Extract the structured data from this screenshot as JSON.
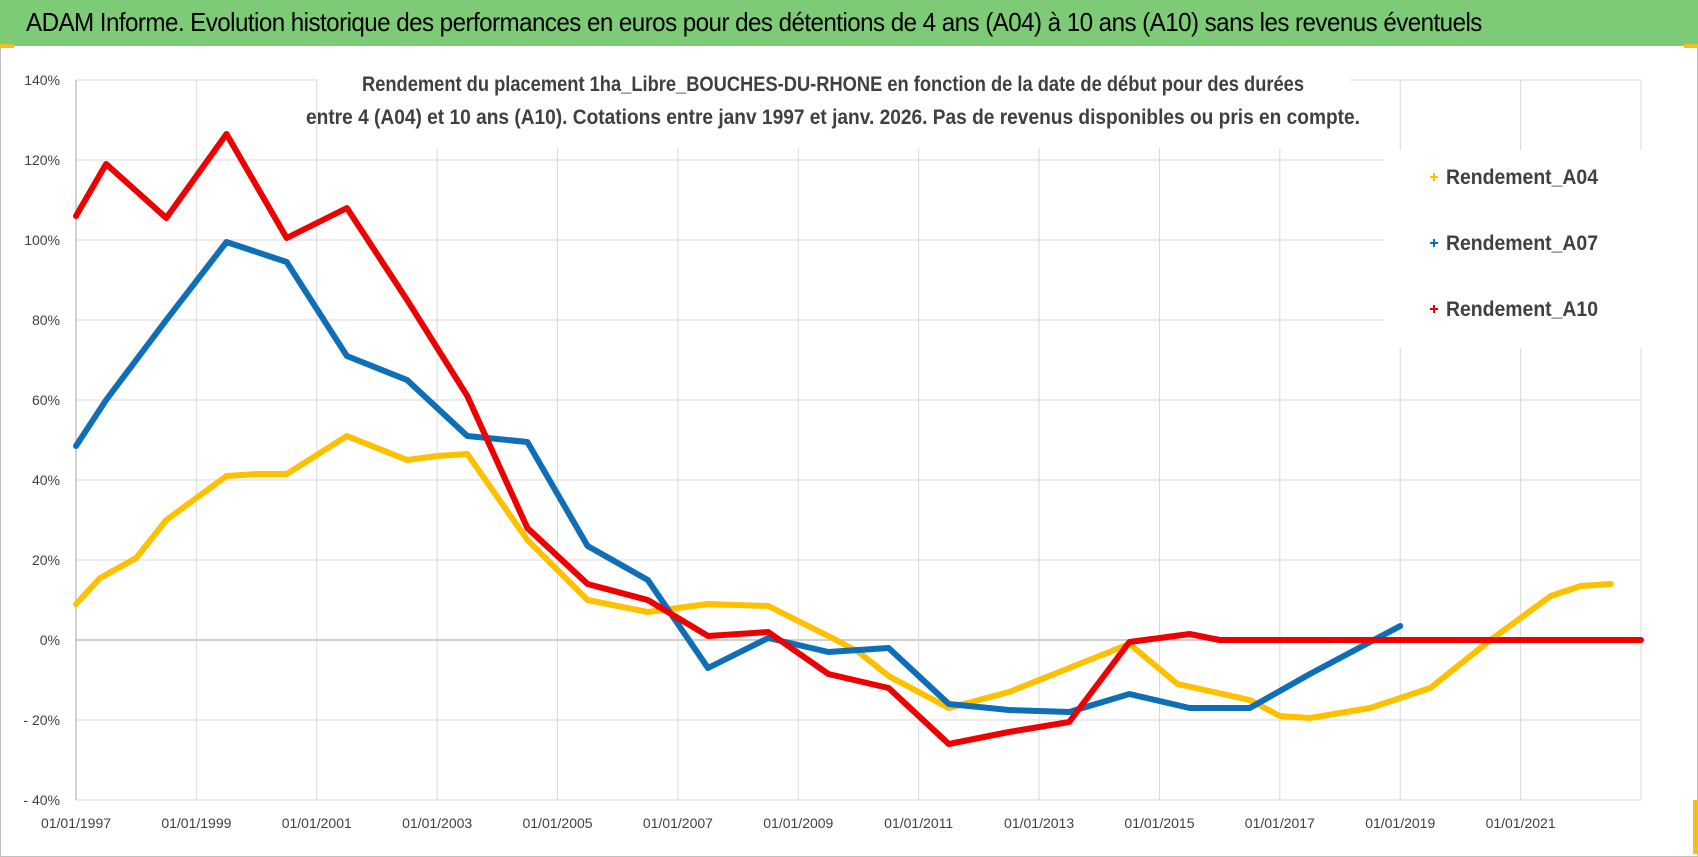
{
  "banner": {
    "title": "ADAM Informe. Evolution historique des performances en euros pour des détentions de 4 ans (A04) à 10 ans (A10) sans les revenus éventuels"
  },
  "colors": {
    "banner": "#7dcb76",
    "grid": "#d9d9d9",
    "zero": "#bfbfbf"
  },
  "chart_data": {
    "type": "line",
    "title_lines": [
      "Rendement du placement 1ha_Libre_BOUCHES-DU-RHONE en fonction de la date de début pour des durées",
      "entre 4 (A04) et 10 ans (A10).  Cotations entre janv 1997 et janv. 2026. Pas de revenus disponibles ou pris en compte."
    ],
    "x_range": [
      1997,
      2023
    ],
    "x_ticks": [
      1997,
      1999,
      2001,
      2003,
      2005,
      2007,
      2009,
      2011,
      2013,
      2015,
      2017,
      2019,
      2021
    ],
    "x_tick_labels": [
      "01/01/1997",
      "01/01/1999",
      "01/01/2001",
      "01/01/2003",
      "01/01/2005",
      "01/01/2007",
      "01/01/2009",
      "01/01/2011",
      "01/01/2013",
      "01/01/2015",
      "01/01/2017",
      "01/01/2019",
      "01/01/2021"
    ],
    "ylim": [
      -40,
      140
    ],
    "y_ticks": [
      -40,
      -20,
      0,
      20,
      40,
      60,
      80,
      100,
      120,
      140
    ],
    "y_tick_labels": [
      "- 40%",
      "- 20%",
      "0%",
      "20%",
      "40%",
      "60%",
      "80%",
      "100%",
      "120%",
      "140%"
    ],
    "series": [
      {
        "name": "Rendement_A04",
        "color": "#ffc000",
        "points": [
          [
            1997,
            9
          ],
          [
            1997.4,
            15.5
          ],
          [
            1998,
            20.5
          ],
          [
            1998.5,
            30
          ],
          [
            1999.5,
            41
          ],
          [
            2000,
            41.5
          ],
          [
            2000.5,
            41.5
          ],
          [
            2001.5,
            51
          ],
          [
            2002.5,
            45
          ],
          [
            2003,
            46
          ],
          [
            2003.5,
            46.5
          ],
          [
            2004.5,
            25
          ],
          [
            2005.5,
            10
          ],
          [
            2006.5,
            7
          ],
          [
            2007.5,
            9
          ],
          [
            2008.5,
            8.5
          ],
          [
            2009.5,
            1
          ],
          [
            2010,
            -3
          ],
          [
            2010.5,
            -9
          ],
          [
            2011.5,
            -17
          ],
          [
            2012.5,
            -13
          ],
          [
            2013.5,
            -7
          ],
          [
            2014.5,
            -1
          ],
          [
            2015.3,
            -11
          ],
          [
            2016.5,
            -15
          ],
          [
            2017,
            -19
          ],
          [
            2017.5,
            -19.5
          ],
          [
            2018.5,
            -17
          ],
          [
            2019.5,
            -12
          ],
          [
            2020.5,
            0
          ],
          [
            2021.5,
            11
          ],
          [
            2022,
            13.5
          ],
          [
            2022.5,
            14
          ]
        ]
      },
      {
        "name": "Rendement_A07",
        "color": "#0f6eb8",
        "points": [
          [
            1997,
            48.5
          ],
          [
            1997.5,
            60
          ],
          [
            1998.5,
            80
          ],
          [
            1999.5,
            99.5
          ],
          [
            2000.5,
            94.5
          ],
          [
            2001.5,
            71
          ],
          [
            2002.5,
            65
          ],
          [
            2003.5,
            51
          ],
          [
            2004.5,
            49.5
          ],
          [
            2005.5,
            23.5
          ],
          [
            2006.5,
            15
          ],
          [
            2007.5,
            -7
          ],
          [
            2008.5,
            0.5
          ],
          [
            2009.5,
            -3
          ],
          [
            2010.5,
            -2
          ],
          [
            2011.5,
            -16
          ],
          [
            2012.5,
            -17.5
          ],
          [
            2013.5,
            -18
          ],
          [
            2014.5,
            -13.5
          ],
          [
            2015.5,
            -17
          ],
          [
            2016.5,
            -17
          ],
          [
            2017.5,
            -8.5
          ],
          [
            2019,
            3.5
          ]
        ]
      },
      {
        "name": "Rendement_A10",
        "color": "#ee0000",
        "points": [
          [
            1997,
            106
          ],
          [
            1997.5,
            119
          ],
          [
            1998.5,
            105.5
          ],
          [
            1999.5,
            126.5
          ],
          [
            2000.5,
            100.5
          ],
          [
            2001.5,
            108
          ],
          [
            2002.5,
            85
          ],
          [
            2003.5,
            61
          ],
          [
            2004.5,
            28
          ],
          [
            2005.5,
            14
          ],
          [
            2006.5,
            10
          ],
          [
            2007.5,
            1
          ],
          [
            2008.5,
            2
          ],
          [
            2009.5,
            -8.5
          ],
          [
            2010.5,
            -12
          ],
          [
            2011.5,
            -26
          ],
          [
            2012.5,
            -23
          ],
          [
            2013.5,
            -20.5
          ],
          [
            2014.5,
            -0.5
          ],
          [
            2015.5,
            1.5
          ],
          [
            2016,
            0
          ],
          [
            2023,
            0
          ]
        ]
      }
    ],
    "legend": {
      "position": "right",
      "labels": [
        "Rendement_A04",
        "Rendement_A07",
        "Rendement_A10"
      ]
    }
  }
}
